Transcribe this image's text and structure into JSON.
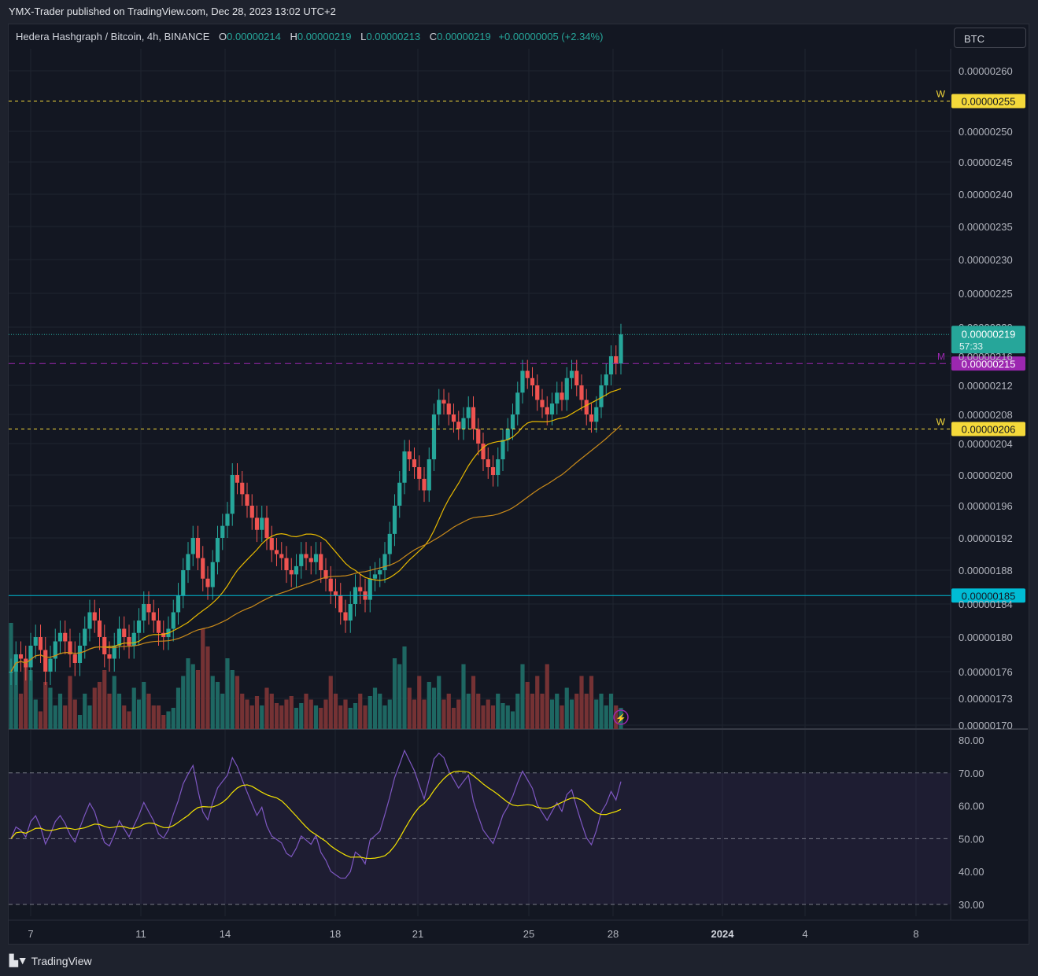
{
  "header": {
    "published": "YMX-Trader published on TradingView.com, Dec 28, 2023 13:02 UTC+2"
  },
  "legend": {
    "symbol": "Hedera Hashgraph / Bitcoin, 4h, BINANCE",
    "o_label": "O",
    "o": "0.00000214",
    "h_label": "H",
    "h": "0.00000219",
    "l_label": "L",
    "l": "0.00000213",
    "c_label": "C",
    "c": "0.00000219",
    "change": "+0.00000005 (+2.34%)"
  },
  "currency_button": "BTC",
  "footer": {
    "brand": "TradingView"
  },
  "colors": {
    "up": "#26a69a",
    "down": "#ef5350",
    "ma_fast": "#e6b800",
    "ma_slow": "#c98a1a",
    "rsi": "#7e57c2",
    "rsi_ma": "#f5e400",
    "weekly": "#f5d93a",
    "monthly": "#9c27b0",
    "support": "#00bcd4"
  },
  "chart_data": {
    "type": "candlestick",
    "price_axis": {
      "min": 1.7e-06,
      "max": 2.6e-06,
      "ticks": [
        "0.00000260",
        "0.00000250",
        "0.00000245",
        "0.00000240",
        "0.00000235",
        "0.00000230",
        "0.00000225",
        "0.00000220",
        "0.00000216",
        "0.00000212",
        "0.00000208",
        "0.00000204",
        "0.00000200",
        "0.00000196",
        "0.00000192",
        "0.00000188",
        "0.00000184",
        "0.00000180",
        "0.00000176",
        "0.00000173",
        "0.00000170"
      ]
    },
    "levels": [
      {
        "name": "W",
        "value": 2.55e-06,
        "label": "0.00000255",
        "color": "#f5d93a"
      },
      {
        "name": "M",
        "value": 2.15e-06,
        "label": "0.00000215",
        "color": "#9c27b0"
      },
      {
        "name": "W",
        "value": 2.06e-06,
        "label": "0.00000206",
        "color": "#f5d93a"
      },
      {
        "name": "",
        "value": 1.85e-06,
        "label": "0.00000185",
        "color": "#00bcd4"
      }
    ],
    "last_price": {
      "label": "0.00000219",
      "countdown": "57:33",
      "value": 2.19e-06
    },
    "x_labels": [
      "7",
      "11",
      "14",
      "18",
      "21",
      "25",
      "28",
      "2024",
      "4",
      "8"
    ],
    "candles_close": [
      1.76,
      1.78,
      1.775,
      1.765,
      1.79,
      1.8,
      1.785,
      1.76,
      1.775,
      1.795,
      1.805,
      1.795,
      1.78,
      1.77,
      1.79,
      1.81,
      1.83,
      1.82,
      1.8,
      1.78,
      1.775,
      1.79,
      1.81,
      1.8,
      1.79,
      1.805,
      1.82,
      1.84,
      1.83,
      1.82,
      1.805,
      1.8,
      1.81,
      1.83,
      1.85,
      1.88,
      1.9,
      1.92,
      1.895,
      1.87,
      1.86,
      1.89,
      1.92,
      1.935,
      1.95,
      2.0,
      1.99,
      1.975,
      1.96,
      1.945,
      1.93,
      1.945,
      1.92,
      1.905,
      1.9,
      1.895,
      1.88,
      1.875,
      1.885,
      1.9,
      1.895,
      1.89,
      1.9,
      1.88,
      1.87,
      1.855,
      1.85,
      1.83,
      1.82,
      1.84,
      1.86,
      1.855,
      1.845,
      1.87,
      1.875,
      1.88,
      1.9,
      1.925,
      1.96,
      1.99,
      2.03,
      2.02,
      2.01,
      1.995,
      1.98,
      2.02,
      2.08,
      2.1,
      2.095,
      2.08,
      2.07,
      2.06,
      2.075,
      2.09,
      2.06,
      2.04,
      2.02,
      2.01,
      2.0,
      2.02,
      2.045,
      2.06,
      2.08,
      2.11,
      2.14,
      2.13,
      2.12,
      2.1,
      2.09,
      2.08,
      2.095,
      2.11,
      2.1,
      2.13,
      2.14,
      2.12,
      2.1,
      2.08,
      2.07,
      2.09,
      2.12,
      2.135,
      2.16,
      2.15,
      2.19
    ],
    "rsi": {
      "levels": [
        70,
        50,
        30
      ],
      "axis": [
        "80.00",
        "70.00",
        "60.00",
        "50.00",
        "40.00",
        "30.00"
      ]
    }
  }
}
